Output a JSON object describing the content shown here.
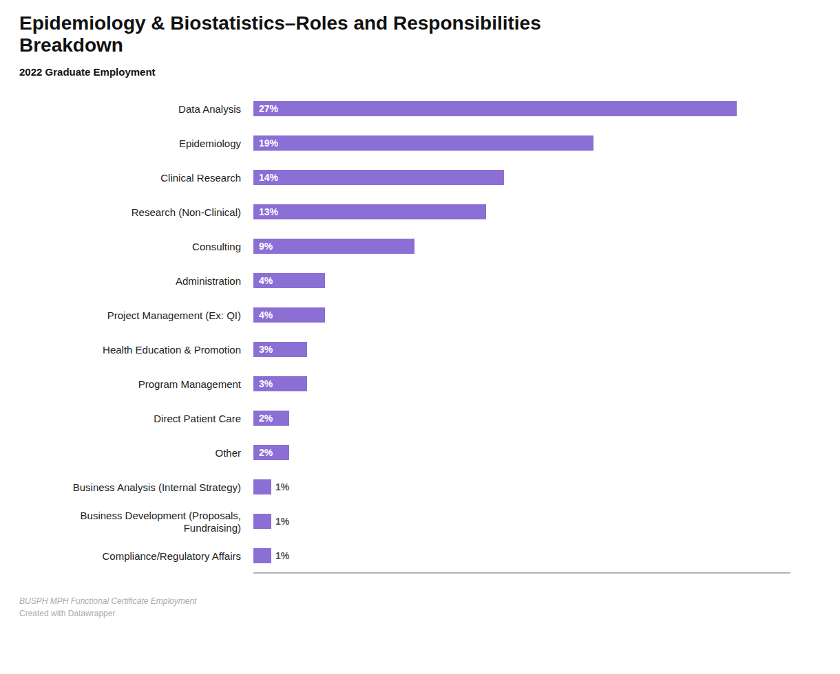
{
  "chart_data": {
    "type": "bar",
    "orientation": "horizontal",
    "title": "Epidemiology & Biostatistics–Roles and Responsibilities\nBreakdown",
    "subtitle": "2022 Graduate Employment",
    "annotations": [
      "BUSPH MPH Functional Certificate Employment",
      "Created with Datawrapper"
    ],
    "categories": [
      "Data Analysis",
      "Epidemiology",
      "Clinical Research",
      "Research (Non-Clinical)",
      "Consulting",
      "Administration",
      "Project Management (Ex: QI)",
      "Health Education & Promotion",
      "Program Management",
      "Direct Patient Care",
      "Other",
      "Business Analysis (Internal Strategy)",
      "Business Development (Proposals,\nFundraising)",
      "Compliance/Regulatory Affairs"
    ],
    "values": [
      27,
      19,
      14,
      13,
      9,
      4,
      4,
      3,
      3,
      2,
      2,
      1,
      1,
      1
    ],
    "value_labels": [
      "27%",
      "19%",
      "14%",
      "13%",
      "9%",
      "4%",
      "4%",
      "3%",
      "3%",
      "2%",
      "2%",
      "1%",
      "1%",
      "1%"
    ],
    "data_labels": true,
    "color": "#8B6FD4",
    "xlim": [
      0,
      30
    ],
    "tick_labels": "y",
    "grid": false
  }
}
